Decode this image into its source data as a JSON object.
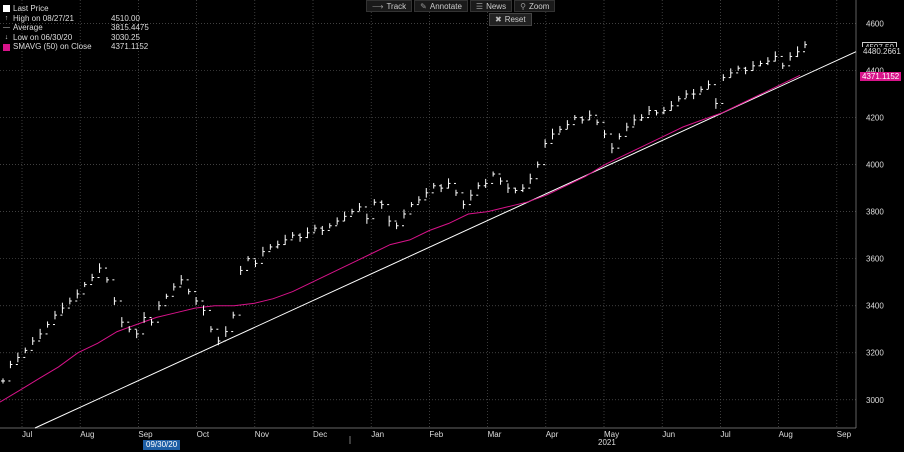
{
  "toolbar": {
    "track": "Track",
    "annotate": "Annotate",
    "news": "News",
    "zoom": "Zoom",
    "reset": "Reset"
  },
  "legend": {
    "rows": [
      {
        "label": "Last Price",
        "value": ""
      },
      {
        "label": "High on 08/27/21",
        "value": "4510.00"
      },
      {
        "label": "Average",
        "value": "3815.4475"
      },
      {
        "label": "Low on 06/30/20",
        "value": "3030.25"
      },
      {
        "label": "SMAVG (50)  on Close",
        "value": "4371.1152"
      }
    ],
    "colors": {
      "price": "#ffffff",
      "sma": "#d8138a"
    }
  },
  "tags": {
    "price": "4507.50",
    "trend": "4480.2661",
    "sma": "4371.1152"
  },
  "date_box": "09/30/20",
  "chart_data": {
    "type": "line",
    "y_ticks": [
      3000,
      3200,
      3400,
      3600,
      3800,
      4000,
      4200,
      4400,
      4600
    ],
    "ylim": [
      2880,
      4700
    ],
    "x_month_labels": [
      "Jul",
      "Aug",
      "Sep",
      "Oct",
      "Nov",
      "Dec",
      "Jan",
      "Feb",
      "Mar",
      "Apr",
      "May",
      "Jun",
      "Jul",
      "Aug",
      "Sep"
    ],
    "x_year_label": "2021",
    "grid": true,
    "series": [
      {
        "name": "Last Price",
        "style": "bar-ohlc",
        "color": "#ffffff",
        "values": [
          3080,
          3150,
          3180,
          3210,
          3250,
          3280,
          3320,
          3360,
          3390,
          3420,
          3450,
          3490,
          3520,
          3560,
          3510,
          3420,
          3330,
          3300,
          3280,
          3350,
          3330,
          3400,
          3440,
          3480,
          3510,
          3460,
          3420,
          3380,
          3300,
          3250,
          3290,
          3360,
          3550,
          3600,
          3580,
          3630,
          3650,
          3660,
          3680,
          3700,
          3690,
          3710,
          3730,
          3720,
          3740,
          3760,
          3780,
          3800,
          3820,
          3770,
          3840,
          3830,
          3760,
          3740,
          3790,
          3830,
          3850,
          3880,
          3910,
          3900,
          3920,
          3880,
          3830,
          3870,
          3910,
          3920,
          3960,
          3930,
          3900,
          3890,
          3900,
          3940,
          4000,
          4090,
          4130,
          4150,
          4170,
          4200,
          4190,
          4210,
          4180,
          4130,
          4070,
          4120,
          4160,
          4190,
          4200,
          4230,
          4220,
          4230,
          4250,
          4280,
          4300,
          4300,
          4320,
          4340,
          4260,
          4370,
          4390,
          4410,
          4400,
          4420,
          4430,
          4440,
          4460,
          4420,
          4460,
          4480,
          4510
        ],
        "count": 109
      },
      {
        "name": "SMAVG (50)  on Close",
        "style": "line",
        "color": "#d8138a",
        "values": [
          2990,
          3040,
          3090,
          3140,
          3200,
          3240,
          3290,
          3320,
          3350,
          3370,
          3390,
          3400,
          3400,
          3410,
          3430,
          3460,
          3500,
          3540,
          3580,
          3620,
          3660,
          3680,
          3720,
          3750,
          3790,
          3800,
          3820,
          3840,
          3870,
          3910,
          3950,
          4000,
          4040,
          4080,
          4120,
          4160,
          4190,
          4220,
          4260,
          4300,
          4340,
          4380
        ]
      },
      {
        "name": "trend",
        "style": "line",
        "color": "#ffffff",
        "values": [
          2880,
          4480.2661
        ]
      }
    ]
  }
}
